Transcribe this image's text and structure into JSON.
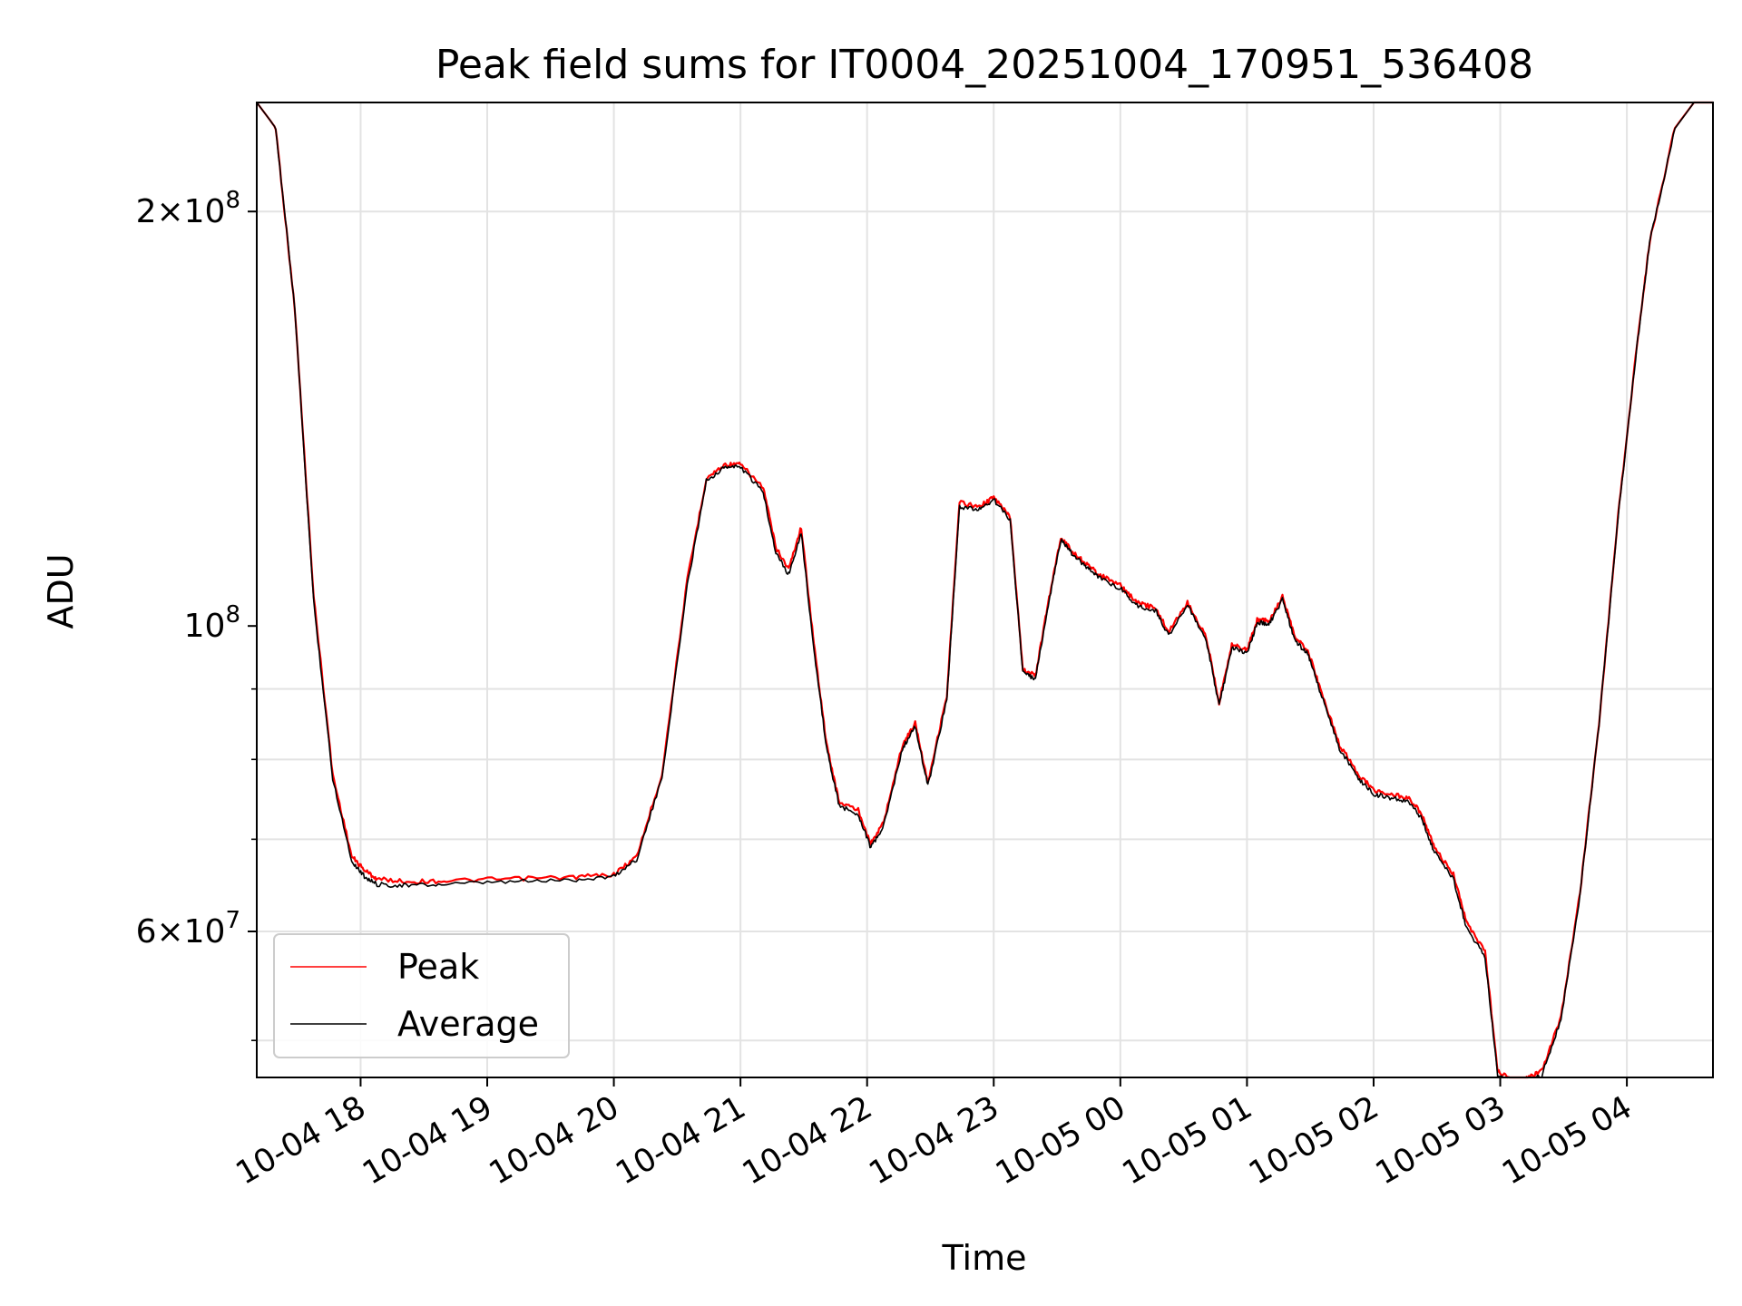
{
  "chart_data": {
    "type": "line",
    "title": "Peak field sums for IT0004_20251004_170951_536408",
    "xlabel": "Time",
    "ylabel": "ADU",
    "yscale": "log",
    "ylim": [
      47000000,
      240000000
    ],
    "xlim_hours": [
      0.0,
      11.5
    ],
    "x_unit": "hours since 10-04 17:11",
    "grid": true,
    "legend_position": "lower-left",
    "x_ticks": [
      {
        "label": "10-04 18",
        "t": 0.82
      },
      {
        "label": "10-04 19",
        "t": 1.82
      },
      {
        "label": "10-04 20",
        "t": 2.82
      },
      {
        "label": "10-04 21",
        "t": 3.82
      },
      {
        "label": "10-04 22",
        "t": 4.82
      },
      {
        "label": "10-04 23",
        "t": 5.82
      },
      {
        "label": "10-05 00",
        "t": 6.82
      },
      {
        "label": "10-05 01",
        "t": 7.82
      },
      {
        "label": "10-05 02",
        "t": 8.82
      },
      {
        "label": "10-05 03",
        "t": 9.82
      },
      {
        "label": "10-05 04",
        "t": 10.82
      }
    ],
    "y_ticks": [
      {
        "label_mantissa": "2",
        "label_exp": "8",
        "value": 200000000,
        "has_multiplier": true
      },
      {
        "label_mantissa": "",
        "label_exp": "8",
        "value": 100000000,
        "has_multiplier": false
      },
      {
        "label_mantissa": "6",
        "label_exp": "7",
        "value": 60000000,
        "has_multiplier": true
      }
    ],
    "y_minor_gridlines": [
      50000000,
      60000000,
      70000000,
      80000000,
      90000000,
      200000000
    ],
    "series": [
      {
        "name": "Peak",
        "color": "#ff0000",
        "x": [
          0.0,
          0.15,
          0.3,
          0.45,
          0.6,
          0.75,
          0.85,
          0.95,
          1.2,
          1.5,
          2.0,
          2.5,
          2.82,
          3.0,
          3.2,
          3.4,
          3.55,
          3.7,
          3.82,
          4.0,
          4.1,
          4.2,
          4.3,
          4.4,
          4.5,
          4.6,
          4.75,
          4.85,
          4.95,
          5.1,
          5.2,
          5.3,
          5.45,
          5.55,
          5.7,
          5.82,
          5.95,
          6.05,
          6.15,
          6.25,
          6.35,
          6.45,
          6.55,
          6.65,
          6.82,
          6.95,
          7.1,
          7.2,
          7.35,
          7.5,
          7.6,
          7.7,
          7.82,
          7.9,
          8.0,
          8.1,
          8.2,
          8.3,
          8.4,
          8.55,
          8.7,
          8.82,
          8.95,
          9.1,
          9.2,
          9.3,
          9.45,
          9.55,
          9.7,
          9.8,
          9.92,
          10.0,
          10.05,
          10.15,
          10.3,
          10.45,
          10.6,
          10.75,
          10.9,
          11.0,
          11.2,
          11.35,
          11.5
        ],
        "values": [
          240000000,
          230000000,
          170000000,
          105000000,
          78000000,
          68000000,
          66500000,
          65500000,
          65200000,
          65300000,
          65500000,
          65700000,
          66000000,
          68000000,
          78000000,
          108000000,
          128000000,
          131000000,
          131000000,
          126000000,
          114000000,
          110000000,
          118000000,
          97000000,
          82000000,
          74500000,
          73500000,
          69500000,
          72000000,
          82000000,
          85000000,
          77000000,
          89000000,
          123000000,
          122000000,
          124000000,
          120000000,
          93000000,
          92000000,
          104000000,
          116000000,
          113000000,
          111000000,
          109000000,
          107000000,
          104000000,
          103000000,
          99000000,
          104000000,
          98000000,
          88000000,
          97000000,
          96000000,
          101000000,
          101000000,
          105000000,
          98000000,
          96000000,
          90000000,
          82000000,
          78000000,
          76000000,
          75500000,
          75000000,
          73000000,
          69000000,
          66000000,
          61000000,
          58000000,
          47500000,
          46800000,
          46800000,
          47000000,
          47500000,
          52000000,
          64000000,
          85000000,
          120000000,
          160000000,
          190000000,
          230000000,
          240000000,
          240000000
        ]
      },
      {
        "name": "Average",
        "color": "#000000",
        "x": [
          0.0,
          0.15,
          0.3,
          0.45,
          0.6,
          0.75,
          0.85,
          0.95,
          1.2,
          1.5,
          2.0,
          2.5,
          2.82,
          3.0,
          3.2,
          3.4,
          3.55,
          3.7,
          3.82,
          4.0,
          4.1,
          4.2,
          4.3,
          4.4,
          4.5,
          4.6,
          4.75,
          4.85,
          4.95,
          5.1,
          5.2,
          5.3,
          5.45,
          5.55,
          5.7,
          5.82,
          5.95,
          6.05,
          6.15,
          6.25,
          6.35,
          6.45,
          6.55,
          6.65,
          6.82,
          6.95,
          7.1,
          7.2,
          7.35,
          7.5,
          7.6,
          7.7,
          7.82,
          7.9,
          8.0,
          8.1,
          8.2,
          8.3,
          8.4,
          8.55,
          8.7,
          8.82,
          8.95,
          9.1,
          9.2,
          9.3,
          9.45,
          9.55,
          9.7,
          9.8,
          9.92,
          10.0,
          10.05,
          10.15,
          10.3,
          10.45,
          10.6,
          10.75,
          10.9,
          11.0,
          11.2,
          11.35,
          11.5
        ],
        "values": [
          240000000,
          230000000,
          170000000,
          104000000,
          77500000,
          67500000,
          65800000,
          64900000,
          64800000,
          64900000,
          65200000,
          65400000,
          65800000,
          67700000,
          77500000,
          107000000,
          127500000,
          130500000,
          130500000,
          125000000,
          113000000,
          109000000,
          117000000,
          96000000,
          81500000,
          74000000,
          73000000,
          69000000,
          71500000,
          81500000,
          84500000,
          76500000,
          88500000,
          122000000,
          121500000,
          123500000,
          119500000,
          92500000,
          91500000,
          103500000,
          115500000,
          112500000,
          110500000,
          108500000,
          106500000,
          103500000,
          102500000,
          98500000,
          103500000,
          97500000,
          87500000,
          96500000,
          95500000,
          100500000,
          100500000,
          104500000,
          97500000,
          95500000,
          89500000,
          81500000,
          77500000,
          75500000,
          75000000,
          74500000,
          72500000,
          68500000,
          65500000,
          60500000,
          57500000,
          47200000,
          46500000,
          46500000,
          46700000,
          47200000,
          51800000,
          63800000,
          84800000,
          119800000,
          159800000,
          189800000,
          229800000,
          240000000,
          240000000
        ]
      }
    ]
  }
}
